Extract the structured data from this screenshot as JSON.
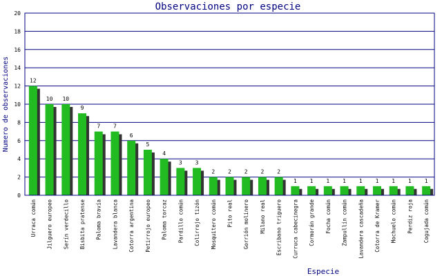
{
  "chart_data": {
    "type": "bar",
    "title": "Observaciones por especie",
    "xlabel": "Especie",
    "ylabel": "Numero de observaciones",
    "ylim": [
      0,
      20
    ],
    "yticks": [
      0,
      2,
      4,
      6,
      8,
      10,
      12,
      14,
      16,
      18,
      20
    ],
    "grid": true,
    "categories": [
      "Urraca común",
      "Jilguero europeo",
      "Serín verdecillo",
      "Bisbita pratense",
      "Paloma bravía",
      "Lavandera blanca",
      "Cotorra argentina",
      "Petirrojo europeo",
      "Paloma torcaz",
      "Pardillo común",
      "Colirrojo tizón",
      "Mosquitero común",
      "Pito real",
      "Gorrión molinero",
      "Milano real",
      "Escribano triguero",
      "Curruca cabecinegra",
      "Cormorán grande",
      "Focha común",
      "Zampullín común",
      "Lavandera cascadeña",
      "Cotorra de Kramer",
      "Mochuelo común",
      "Perdiz roja",
      "Cogujada común"
    ],
    "values": [
      12,
      10,
      10,
      9,
      7,
      7,
      6,
      5,
      4,
      3,
      3,
      2,
      2,
      2,
      2,
      2,
      1,
      1,
      1,
      1,
      1,
      1,
      1,
      1,
      1
    ],
    "colors": {
      "bar": "#22bb22",
      "shadow": "#333333",
      "grid": "#000080",
      "text": "#000080",
      "label": "#000000"
    }
  }
}
